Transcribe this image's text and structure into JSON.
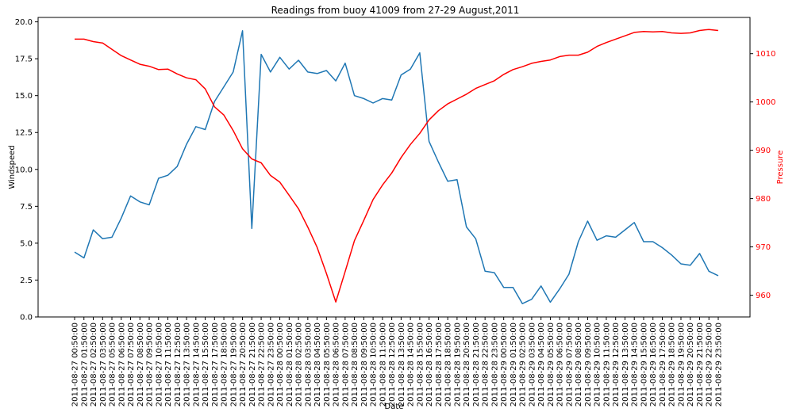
{
  "chart_data": {
    "type": "line",
    "title": "Readings from buoy 41009 from 27-29 August,2011",
    "xlabel": "Date",
    "ylabel_left": "Windspeed",
    "ylabel_right": "Pressure",
    "ylim_left": [
      0,
      20.3
    ],
    "ylim_right": [
      955.5,
      1017.5
    ],
    "yticks_left": [
      "0.0",
      "2.5",
      "5.0",
      "7.5",
      "10.0",
      "12.5",
      "15.0",
      "17.5",
      "20.0"
    ],
    "yticks_right": [
      "960",
      "970",
      "980",
      "990",
      "1000",
      "1010"
    ],
    "grid": false,
    "colors": {
      "windspeed": "#1f77b4",
      "pressure": "#ff0000",
      "right_axis": "#ff0000"
    },
    "x": [
      "2011-08-27 00:50:00",
      "2011-08-27 01:50:00",
      "2011-08-27 02:50:00",
      "2011-08-27 03:50:00",
      "2011-08-27 05:50:00",
      "2011-08-27 06:50:00",
      "2011-08-27 07:50:00",
      "2011-08-27 08:50:00",
      "2011-08-27 09:50:00",
      "2011-08-27 10:50:00",
      "2011-08-27 11:50:00",
      "2011-08-27 12:50:00",
      "2011-08-27 13:50:00",
      "2011-08-27 14:50:00",
      "2011-08-27 15:50:00",
      "2011-08-27 17:50:00",
      "2011-08-27 18:50:00",
      "2011-08-27 19:50:00",
      "2011-08-27 20:50:00",
      "2011-08-27 21:50:00",
      "2011-08-27 22:50:00",
      "2011-08-27 23:50:00",
      "2011-08-28 00:50:00",
      "2011-08-28 01:50:00",
      "2011-08-28 02:50:00",
      "2011-08-28 03:50:00",
      "2011-08-28 04:50:00",
      "2011-08-28 05:50:00",
      "2011-08-28 06:50:00",
      "2011-08-28 07:50:00",
      "2011-08-28 08:50:00",
      "2011-08-28 09:50:00",
      "2011-08-28 10:50:00",
      "2011-08-28 11:50:00",
      "2011-08-28 12:50:00",
      "2011-08-28 13:50:00",
      "2011-08-28 14:50:00",
      "2011-08-28 15:50:00",
      "2011-08-28 16:50:00",
      "2011-08-28 17:50:00",
      "2011-08-28 18:50:00",
      "2011-08-28 19:50:00",
      "2011-08-28 20:50:00",
      "2011-08-28 21:50:00",
      "2011-08-28 22:50:00",
      "2011-08-28 23:50:00",
      "2011-08-29 00:50:00",
      "2011-08-29 01:50:00",
      "2011-08-29 02:50:00",
      "2011-08-29 03:50:00",
      "2011-08-29 04:50:00",
      "2011-08-29 05:50:00",
      "2011-08-29 06:50:00",
      "2011-08-29 07:50:00",
      "2011-08-29 08:50:00",
      "2011-08-29 09:50:00",
      "2011-08-29 10:50:00",
      "2011-08-29 11:50:00",
      "2011-08-29 12:50:00",
      "2011-08-29 13:50:00",
      "2011-08-29 14:50:00",
      "2011-08-29 15:50:00",
      "2011-08-29 16:50:00",
      "2011-08-29 17:50:00",
      "2011-08-29 18:50:00",
      "2011-08-29 19:50:00",
      "2011-08-29 20:50:00",
      "2011-08-29 21:50:00",
      "2011-08-29 22:50:00",
      "2011-08-29 23:50:00"
    ],
    "series": [
      {
        "name": "Windspeed",
        "axis": "left",
        "values": [
          4.4,
          4.0,
          5.9,
          5.3,
          5.4,
          6.7,
          8.2,
          7.8,
          7.6,
          9.4,
          9.6,
          10.2,
          11.7,
          12.9,
          12.7,
          14.6,
          15.6,
          16.6,
          19.4,
          6.0,
          17.8,
          16.6,
          17.6,
          16.8,
          17.4,
          16.6,
          16.5,
          16.7,
          16.0,
          17.2,
          15.0,
          14.8,
          14.5,
          14.8,
          14.7,
          16.4,
          16.8,
          17.9,
          11.9,
          10.5,
          9.2,
          9.3,
          6.1,
          5.3,
          3.1,
          3.0,
          2.0,
          2.0,
          0.9,
          1.2,
          2.1,
          1.0,
          1.9,
          2.9,
          5.1,
          6.5,
          5.2,
          5.5,
          5.4,
          5.9,
          6.4,
          5.1,
          5.1,
          4.7,
          4.2,
          3.6,
          3.5,
          4.3,
          3.1,
          2.8
        ]
      },
      {
        "name": "Pressure",
        "axis": "right",
        "values": [
          1013,
          1013,
          1012.5,
          1012.2,
          1010.9,
          1009.6,
          1008.7,
          1007.8,
          1007.4,
          1006.7,
          1006.8,
          1005.8,
          1005.0,
          1004.6,
          1002.7,
          999.0,
          997.3,
          994.1,
          990.3,
          988.2,
          987.4,
          984.8,
          983.4,
          980.7,
          977.9,
          974.1,
          969.9,
          964.5,
          958.6,
          964.9,
          971.3,
          975.5,
          979.8,
          982.8,
          985.3,
          988.5,
          991.2,
          993.5,
          996.3,
          998.2,
          999.6,
          1000.6,
          1001.6,
          1002.8,
          1003.6,
          1004.4,
          1005.7,
          1006.7,
          1007.3,
          1008.0,
          1008.4,
          1008.7,
          1009.4,
          1009.7,
          1009.7,
          1010.3,
          1011.5,
          1012.3,
          1013.0,
          1013.7,
          1014.4,
          1014.6,
          1014.5,
          1014.6,
          1014.3,
          1014.2,
          1014.3,
          1014.8,
          1015.0,
          1014.8
        ]
      }
    ]
  }
}
